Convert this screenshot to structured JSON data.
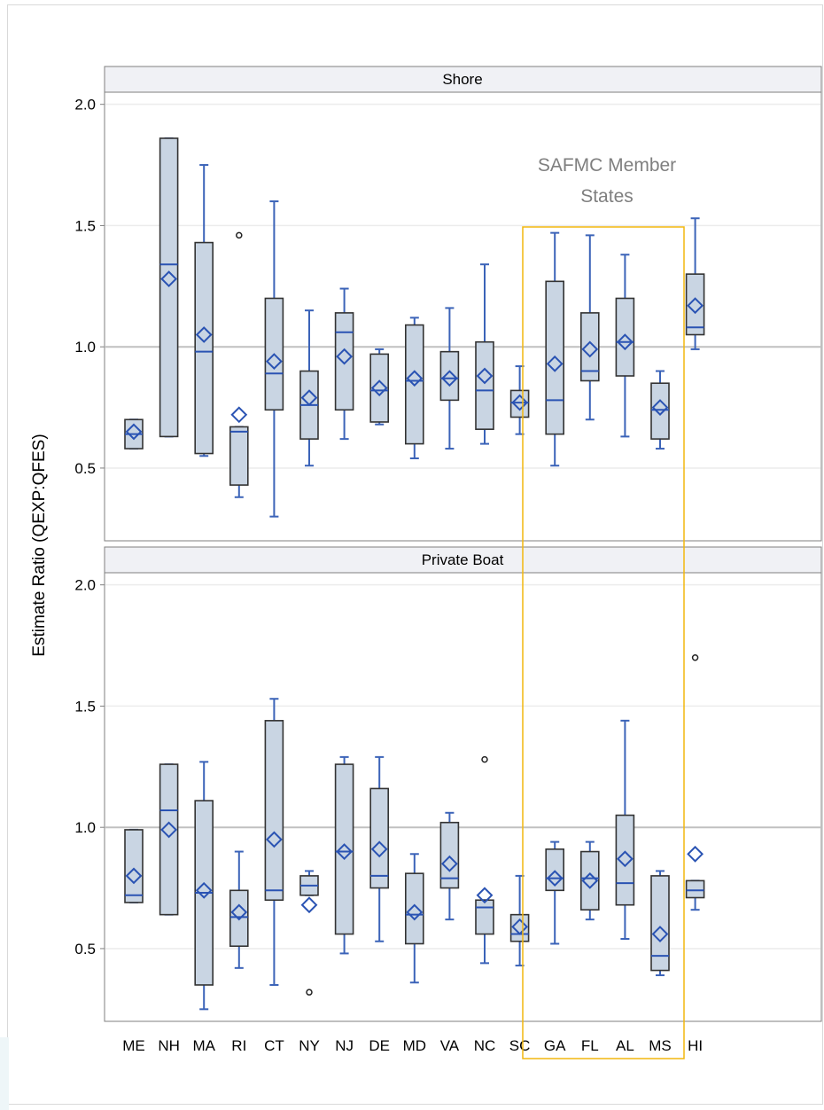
{
  "chart_data": {
    "type": "box",
    "ylabel": "Estimate Ratio (QEXP:QFES)",
    "categories": [
      "ME",
      "NH",
      "MA",
      "RI",
      "CT",
      "NY",
      "NJ",
      "DE",
      "MD",
      "VA",
      "NC",
      "SC",
      "GA",
      "FL",
      "AL",
      "MS",
      "HI"
    ],
    "y_ticks": [
      0.5,
      1.0,
      1.5,
      2.0
    ],
    "y_tick_labels": [
      "0.5",
      "1.0",
      "1.5",
      "2.0"
    ],
    "reference_line": 1.0,
    "grid": true,
    "annotation": {
      "lines": [
        "SAFMC Member",
        "States"
      ],
      "highlight_categories": [
        "NC",
        "SC",
        "GA",
        "FL"
      ],
      "color": "#f2b70f"
    },
    "colors": {
      "box_fill": "#c9d5e3",
      "box_edge": "#333333",
      "whisker": "#3b63b8",
      "mean_marker": "#2a53b3",
      "median": "#2a53b3",
      "reference": "#c0c0c0",
      "strip": "#f0f1f5"
    },
    "panels": [
      {
        "title": "Shore",
        "ylim": [
          0.2,
          2.05
        ],
        "boxes": [
          {
            "cat": "ME",
            "q1": 0.58,
            "median": 0.64,
            "q3": 0.7,
            "lo": 0.58,
            "hi": 0.7,
            "mean": 0.65,
            "outliers": []
          },
          {
            "cat": "NH",
            "q1": 0.63,
            "median": 1.34,
            "q3": 1.86,
            "lo": 0.63,
            "hi": 1.86,
            "mean": 1.28,
            "outliers": []
          },
          {
            "cat": "MA",
            "q1": 0.56,
            "median": 0.98,
            "q3": 1.43,
            "lo": 0.55,
            "hi": 1.75,
            "mean": 1.05,
            "outliers": []
          },
          {
            "cat": "RI",
            "q1": 0.43,
            "median": 0.65,
            "q3": 0.67,
            "lo": 0.38,
            "hi": 0.67,
            "mean": 0.72,
            "outliers": [
              1.46
            ]
          },
          {
            "cat": "CT",
            "q1": 0.74,
            "median": 0.89,
            "q3": 1.2,
            "lo": 0.3,
            "hi": 1.6,
            "mean": 0.94,
            "outliers": []
          },
          {
            "cat": "NY",
            "q1": 0.62,
            "median": 0.76,
            "q3": 0.9,
            "lo": 0.51,
            "hi": 1.15,
            "mean": 0.79,
            "outliers": []
          },
          {
            "cat": "NJ",
            "q1": 0.74,
            "median": 1.06,
            "q3": 1.14,
            "lo": 0.62,
            "hi": 1.24,
            "mean": 0.96,
            "outliers": []
          },
          {
            "cat": "DE",
            "q1": 0.69,
            "median": 0.82,
            "q3": 0.97,
            "lo": 0.68,
            "hi": 0.99,
            "mean": 0.83,
            "outliers": []
          },
          {
            "cat": "MD",
            "q1": 0.6,
            "median": 0.86,
            "q3": 1.09,
            "lo": 0.54,
            "hi": 1.12,
            "mean": 0.87,
            "outliers": []
          },
          {
            "cat": "VA",
            "q1": 0.78,
            "median": 0.87,
            "q3": 0.98,
            "lo": 0.58,
            "hi": 1.16,
            "mean": 0.87,
            "outliers": []
          },
          {
            "cat": "NC",
            "q1": 0.66,
            "median": 0.82,
            "q3": 1.02,
            "lo": 0.6,
            "hi": 1.34,
            "mean": 0.88,
            "outliers": []
          },
          {
            "cat": "SC",
            "q1": 0.71,
            "median": 0.77,
            "q3": 0.82,
            "lo": 0.64,
            "hi": 0.92,
            "mean": 0.77,
            "outliers": []
          },
          {
            "cat": "GA",
            "q1": 0.64,
            "median": 0.78,
            "q3": 1.27,
            "lo": 0.51,
            "hi": 1.47,
            "mean": 0.93,
            "outliers": []
          },
          {
            "cat": "FL",
            "q1": 0.86,
            "median": 0.9,
            "q3": 1.14,
            "lo": 0.7,
            "hi": 1.46,
            "mean": 0.99,
            "outliers": []
          },
          {
            "cat": "AL",
            "q1": 0.88,
            "median": 1.02,
            "q3": 1.2,
            "lo": 0.63,
            "hi": 1.38,
            "mean": 1.02,
            "outliers": []
          },
          {
            "cat": "MS",
            "q1": 0.62,
            "median": 0.74,
            "q3": 0.85,
            "lo": 0.58,
            "hi": 0.9,
            "mean": 0.75,
            "outliers": []
          },
          {
            "cat": "HI",
            "q1": 1.05,
            "median": 1.08,
            "q3": 1.3,
            "lo": 0.99,
            "hi": 1.53,
            "mean": 1.17,
            "outliers": []
          }
        ]
      },
      {
        "title": "Private Boat",
        "ylim": [
          0.2,
          2.05
        ],
        "boxes": [
          {
            "cat": "ME",
            "q1": 0.69,
            "median": 0.72,
            "q3": 0.99,
            "lo": 0.69,
            "hi": 0.99,
            "mean": 0.8,
            "outliers": []
          },
          {
            "cat": "NH",
            "q1": 0.64,
            "median": 1.07,
            "q3": 1.26,
            "lo": 0.64,
            "hi": 1.26,
            "mean": 0.99,
            "outliers": []
          },
          {
            "cat": "MA",
            "q1": 0.35,
            "median": 0.73,
            "q3": 1.11,
            "lo": 0.25,
            "hi": 1.27,
            "mean": 0.74,
            "outliers": []
          },
          {
            "cat": "RI",
            "q1": 0.51,
            "median": 0.63,
            "q3": 0.74,
            "lo": 0.42,
            "hi": 0.9,
            "mean": 0.65,
            "outliers": []
          },
          {
            "cat": "CT",
            "q1": 0.7,
            "median": 0.74,
            "q3": 1.44,
            "lo": 0.35,
            "hi": 1.53,
            "mean": 0.95,
            "outliers": []
          },
          {
            "cat": "NY",
            "q1": 0.72,
            "median": 0.76,
            "q3": 0.8,
            "lo": 0.72,
            "hi": 0.82,
            "mean": 0.68,
            "outliers": [
              0.32
            ]
          },
          {
            "cat": "NJ",
            "q1": 0.56,
            "median": 0.9,
            "q3": 1.26,
            "lo": 0.48,
            "hi": 1.29,
            "mean": 0.9,
            "outliers": []
          },
          {
            "cat": "DE",
            "q1": 0.75,
            "median": 0.8,
            "q3": 1.16,
            "lo": 0.53,
            "hi": 1.29,
            "mean": 0.91,
            "outliers": []
          },
          {
            "cat": "MD",
            "q1": 0.52,
            "median": 0.64,
            "q3": 0.81,
            "lo": 0.36,
            "hi": 0.89,
            "mean": 0.65,
            "outliers": []
          },
          {
            "cat": "VA",
            "q1": 0.75,
            "median": 0.79,
            "q3": 1.02,
            "lo": 0.62,
            "hi": 1.06,
            "mean": 0.85,
            "outliers": []
          },
          {
            "cat": "NC",
            "q1": 0.56,
            "median": 0.67,
            "q3": 0.7,
            "lo": 0.44,
            "hi": 0.7,
            "mean": 0.72,
            "outliers": [
              1.28
            ]
          },
          {
            "cat": "SC",
            "q1": 0.53,
            "median": 0.56,
            "q3": 0.64,
            "lo": 0.43,
            "hi": 0.8,
            "mean": 0.59,
            "outliers": []
          },
          {
            "cat": "GA",
            "q1": 0.74,
            "median": 0.79,
            "q3": 0.91,
            "lo": 0.52,
            "hi": 0.94,
            "mean": 0.79,
            "outliers": []
          },
          {
            "cat": "FL",
            "q1": 0.66,
            "median": 0.79,
            "q3": 0.9,
            "lo": 0.62,
            "hi": 0.94,
            "mean": 0.78,
            "outliers": []
          },
          {
            "cat": "AL",
            "q1": 0.68,
            "median": 0.77,
            "q3": 1.05,
            "lo": 0.54,
            "hi": 1.44,
            "mean": 0.87,
            "outliers": []
          },
          {
            "cat": "MS",
            "q1": 0.41,
            "median": 0.47,
            "q3": 0.8,
            "lo": 0.39,
            "hi": 0.82,
            "mean": 0.56,
            "outliers": []
          },
          {
            "cat": "HI",
            "q1": 0.71,
            "median": 0.74,
            "q3": 0.78,
            "lo": 0.66,
            "hi": 0.78,
            "mean": 0.89,
            "outliers": [
              1.7
            ]
          }
        ]
      }
    ]
  }
}
